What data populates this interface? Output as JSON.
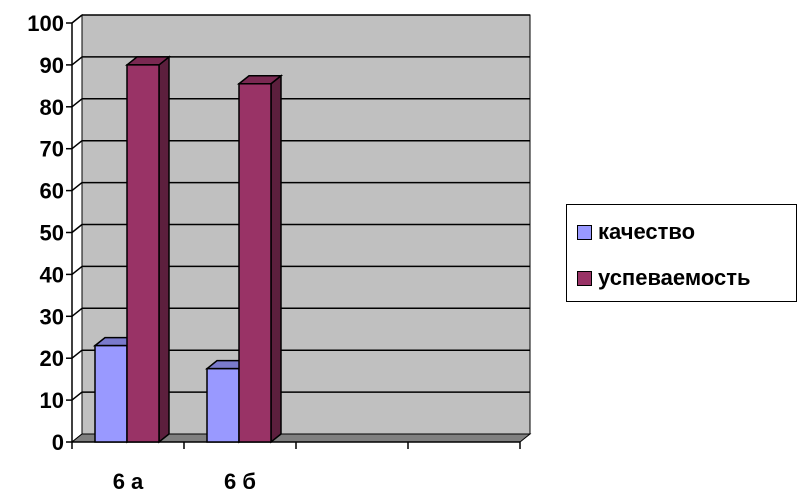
{
  "chart_data": {
    "type": "bar",
    "categories": [
      "6 а",
      "6 б",
      "",
      ""
    ],
    "series": [
      {
        "name": "качество",
        "values": [
          23,
          17.5,
          null,
          null
        ],
        "color": "#9999ff"
      },
      {
        "name": "успеваемость",
        "values": [
          90,
          85.5,
          null,
          null
        ],
        "color": "#993366"
      }
    ],
    "ylim": [
      0,
      100
    ],
    "yticks": [
      0,
      10,
      20,
      30,
      40,
      50,
      60,
      70,
      80,
      90,
      100
    ],
    "grid": true,
    "legend": "right",
    "three_d": true,
    "wall_color": "#c0c0c0"
  }
}
